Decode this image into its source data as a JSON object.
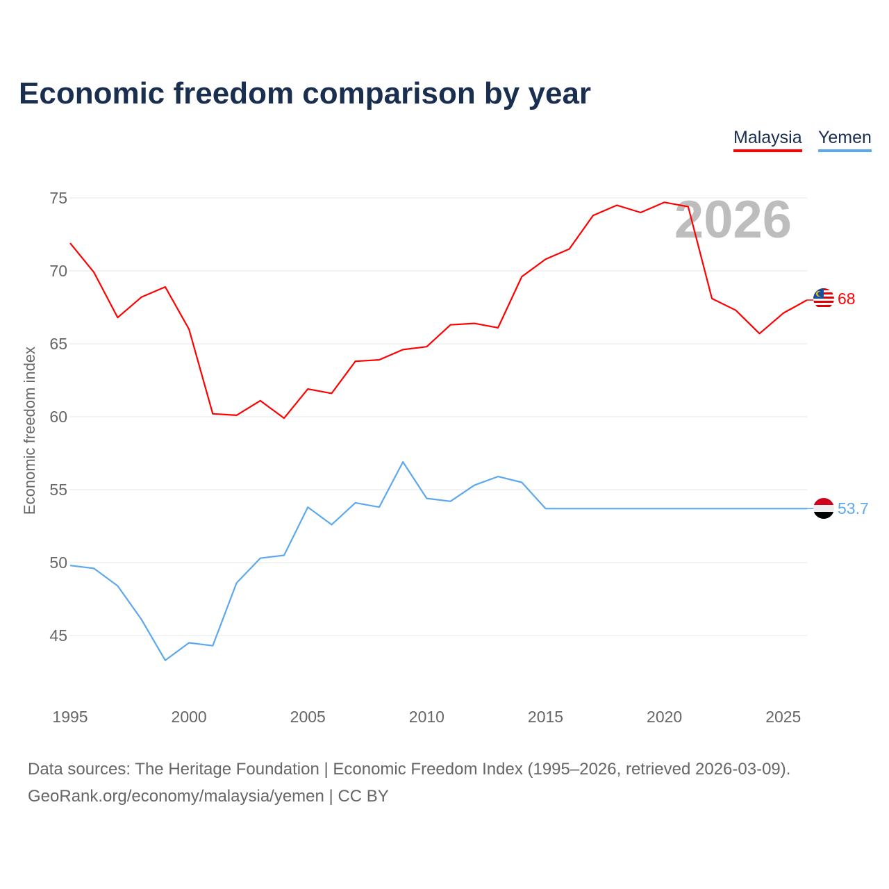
{
  "title": "Economic freedom comparison by year",
  "source_line1": "Data sources: The Heritage Foundation | Economic Freedom Index (1995–2026, retrieved 2026-03-09).",
  "source_line2": "GeoRank.org/economy/malaysia/yemen | CC BY",
  "chart_data": {
    "type": "line",
    "title": "Economic freedom comparison by year",
    "xlabel": "",
    "ylabel": "Economic freedom index",
    "year_watermark": "2026",
    "x": [
      1995,
      1996,
      1997,
      1998,
      1999,
      2000,
      2001,
      2002,
      2003,
      2004,
      2005,
      2006,
      2007,
      2008,
      2009,
      2010,
      2011,
      2012,
      2013,
      2014,
      2015,
      2016,
      2017,
      2018,
      2019,
      2020,
      2021,
      2022,
      2023,
      2024,
      2025,
      2026
    ],
    "xticks": [
      1995,
      2000,
      2005,
      2010,
      2015,
      2020,
      2025
    ],
    "yticks": [
      45,
      50,
      55,
      60,
      65,
      70,
      75
    ],
    "xlim": [
      1995,
      2026
    ],
    "ylim": [
      41,
      76
    ],
    "legend_position": "top-right",
    "series": [
      {
        "name": "Malaysia",
        "color": "#ff0000",
        "end_label": "68",
        "values": [
          71.9,
          69.9,
          66.8,
          68.2,
          68.9,
          66.0,
          60.2,
          60.1,
          61.1,
          59.9,
          61.9,
          61.6,
          63.8,
          63.9,
          64.6,
          64.8,
          66.3,
          66.4,
          66.1,
          69.6,
          70.8,
          71.5,
          73.8,
          74.5,
          74.0,
          74.7,
          74.4,
          68.1,
          67.3,
          65.7,
          67.1,
          68.0
        ]
      },
      {
        "name": "Yemen",
        "color": "#5ba8ef",
        "end_label": "53.7",
        "values": [
          49.8,
          49.6,
          48.4,
          46.1,
          43.3,
          44.5,
          44.3,
          48.6,
          50.3,
          50.5,
          53.8,
          52.6,
          54.1,
          53.8,
          56.9,
          54.4,
          54.2,
          55.3,
          55.9,
          55.5,
          53.7,
          53.7,
          53.7,
          53.7,
          53.7,
          53.7,
          53.7,
          53.7,
          53.7,
          53.7,
          53.7,
          53.7
        ]
      }
    ]
  }
}
